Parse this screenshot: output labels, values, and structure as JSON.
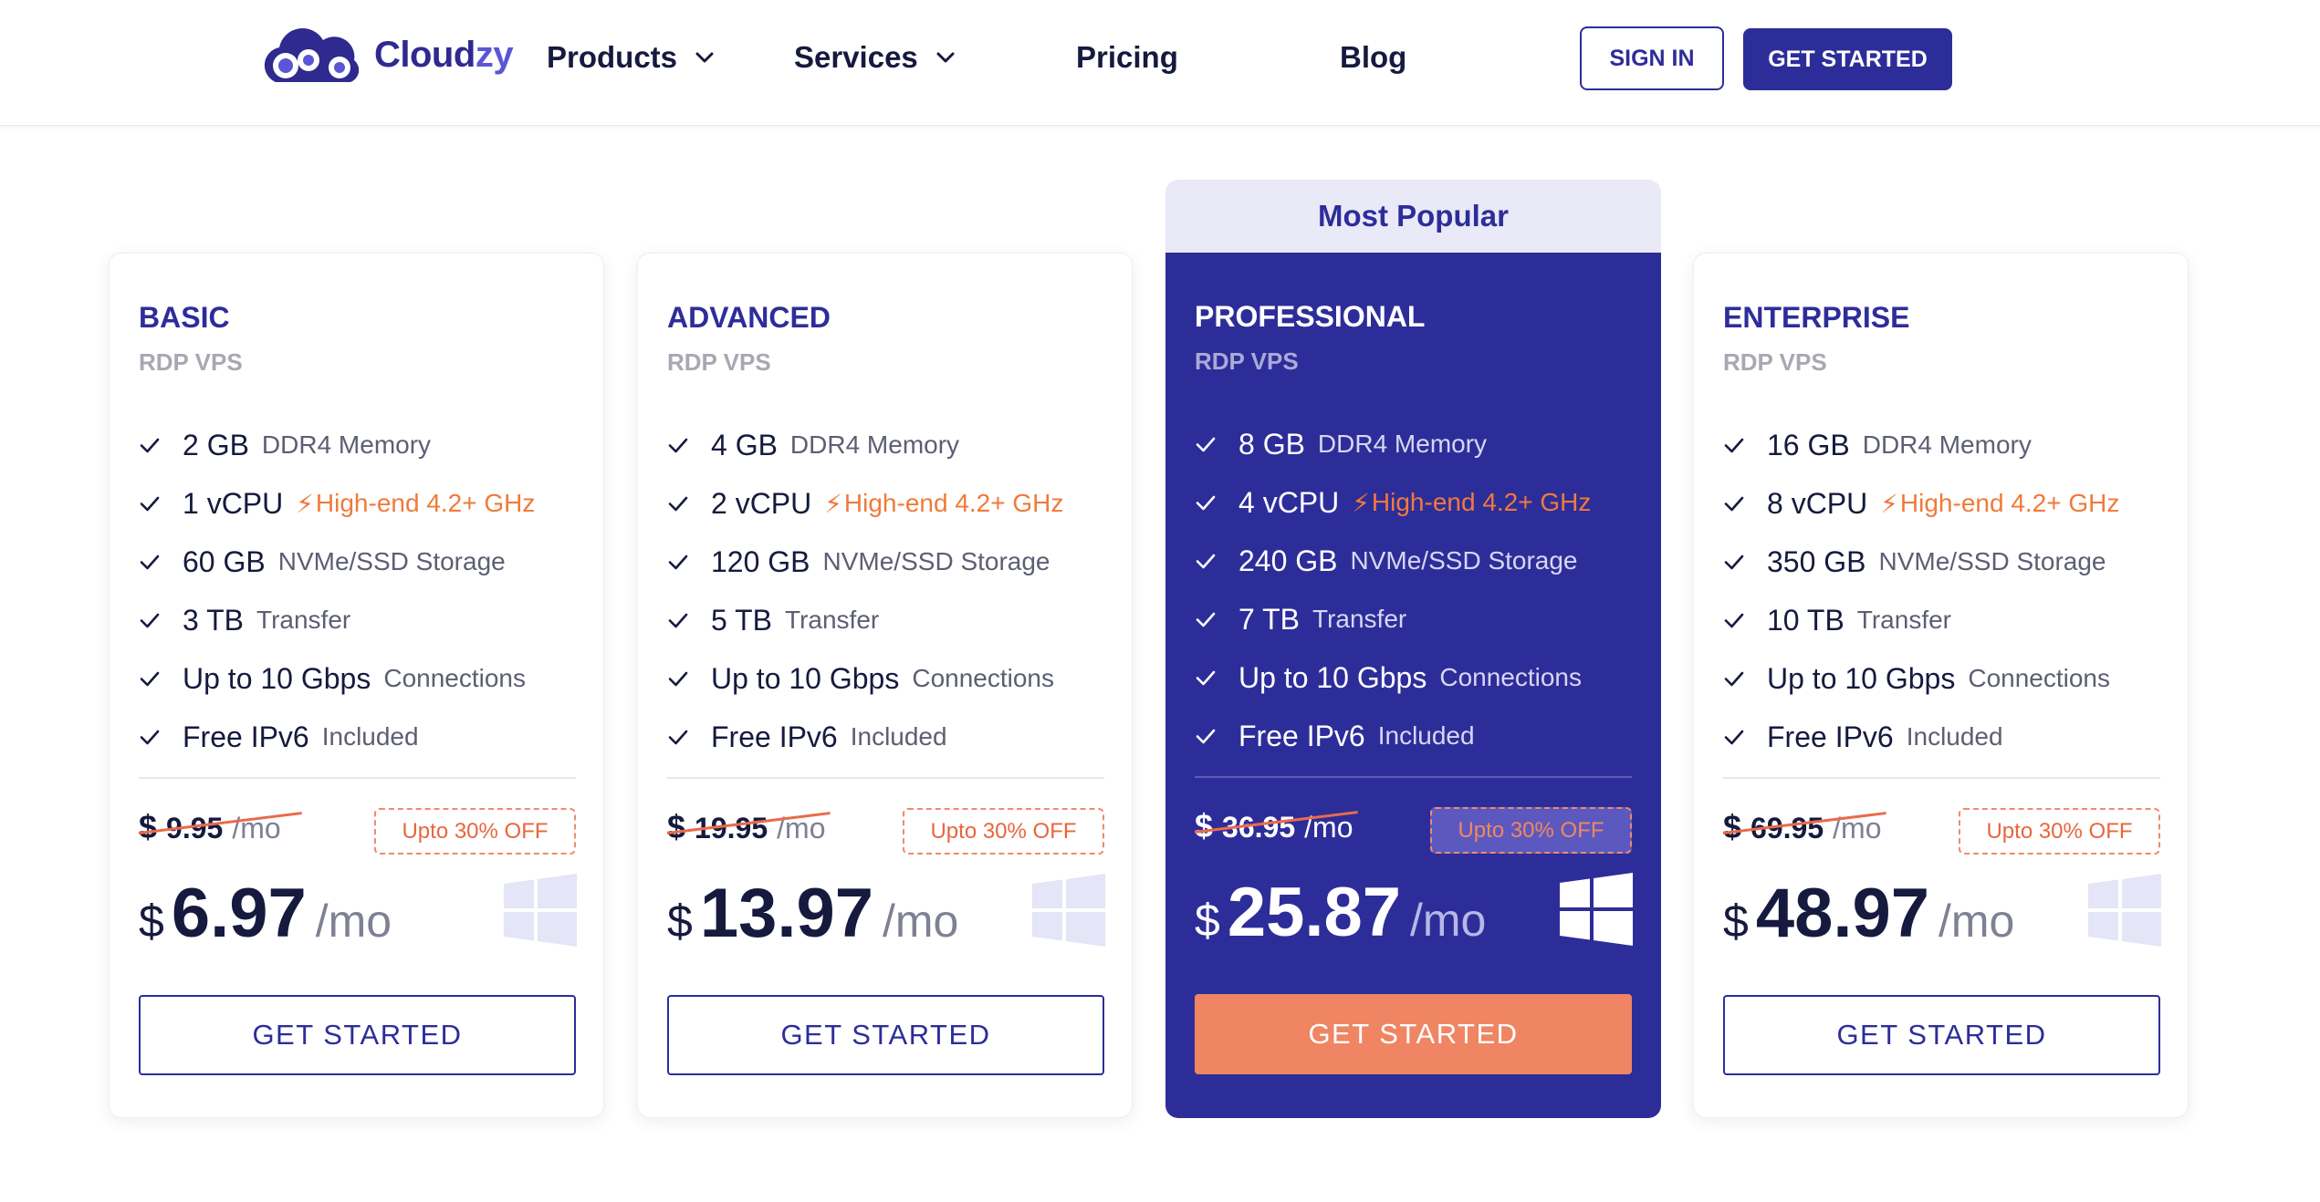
{
  "header": {
    "logo_text_a": "Cloud",
    "logo_text_b": "zy",
    "nav": [
      {
        "label": "Products",
        "has_dropdown": true
      },
      {
        "label": "Services",
        "has_dropdown": true
      },
      {
        "label": "Pricing",
        "has_dropdown": false
      },
      {
        "label": "Blog",
        "has_dropdown": false
      }
    ],
    "sign_in": "SIGN IN",
    "get_started": "GET STARTED"
  },
  "colors": {
    "brand": "#2d2d9a",
    "accent": "#ef8563",
    "highlight": "#f07a3a"
  },
  "popular_label": "Most Popular",
  "plans": [
    {
      "name": "BASIC",
      "subtitle": "RDP VPS",
      "features": [
        {
          "main": "2 GB",
          "desc": "DDR4 Memory"
        },
        {
          "main": "1 vCPU",
          "bolt": "⚡",
          "desc": "High-end 4.2+ GHz"
        },
        {
          "main": "60 GB",
          "desc": "NVMe/SSD Storage"
        },
        {
          "main": "3 TB",
          "desc": "Transfer"
        },
        {
          "main": "Up to 10 Gbps",
          "desc": "Connections"
        },
        {
          "main": "Free IPv6",
          "desc": "Included"
        }
      ],
      "old_currency": "$",
      "old_price": "9.95",
      "old_per": "/mo",
      "discount": "Upto 30% OFF",
      "currency": "$",
      "price": "6.97",
      "per": "/mo",
      "icon": "windows-icon",
      "cta": "GET STARTED"
    },
    {
      "name": "ADVANCED",
      "subtitle": "RDP VPS",
      "features": [
        {
          "main": "4 GB",
          "desc": "DDR4 Memory"
        },
        {
          "main": "2 vCPU",
          "bolt": "⚡",
          "desc": "High-end 4.2+ GHz"
        },
        {
          "main": "120 GB",
          "desc": "NVMe/SSD Storage"
        },
        {
          "main": "5 TB",
          "desc": "Transfer"
        },
        {
          "main": "Up to 10 Gbps",
          "desc": "Connections"
        },
        {
          "main": "Free IPv6",
          "desc": "Included"
        }
      ],
      "old_currency": "$",
      "old_price": "19.95",
      "old_per": "/mo",
      "discount": "Upto 30% OFF",
      "currency": "$",
      "price": "13.97",
      "per": "/mo",
      "icon": "windows-icon",
      "cta": "GET STARTED"
    },
    {
      "name": "PROFESSIONAL",
      "subtitle": "RDP VPS",
      "features": [
        {
          "main": "8 GB",
          "desc": "DDR4 Memory"
        },
        {
          "main": "4 vCPU",
          "bolt": "⚡",
          "desc": "High-end 4.2+ GHz"
        },
        {
          "main": "240 GB",
          "desc": "NVMe/SSD Storage"
        },
        {
          "main": "7 TB",
          "desc": "Transfer"
        },
        {
          "main": "Up to 10 Gbps",
          "desc": "Connections"
        },
        {
          "main": "Free IPv6",
          "desc": "Included"
        }
      ],
      "old_currency": "$",
      "old_price": "36.95",
      "old_per": "/mo",
      "discount": "Upto 30% OFF",
      "currency": "$",
      "price": "25.87",
      "per": "/mo",
      "icon": "windows-icon",
      "cta": "GET STARTED"
    },
    {
      "name": "ENTERPRISE",
      "subtitle": "RDP VPS",
      "features": [
        {
          "main": "16 GB",
          "desc": "DDR4 Memory"
        },
        {
          "main": "8 vCPU",
          "bolt": "⚡",
          "desc": "High-end 4.2+ GHz"
        },
        {
          "main": "350 GB",
          "desc": "NVMe/SSD Storage"
        },
        {
          "main": "10 TB",
          "desc": "Transfer"
        },
        {
          "main": "Up to 10 Gbps",
          "desc": "Connections"
        },
        {
          "main": "Free IPv6",
          "desc": "Included"
        }
      ],
      "old_currency": "$",
      "old_price": "69.95",
      "old_per": "/mo",
      "discount": "Upto 30% OFF",
      "currency": "$",
      "price": "48.97",
      "per": "/mo",
      "icon": "windows-icon",
      "cta": "GET STARTED"
    }
  ]
}
